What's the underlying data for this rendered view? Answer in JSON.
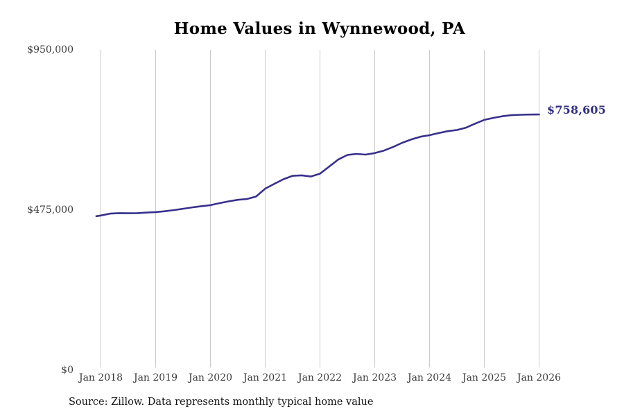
{
  "header": {
    "title": "Home Values in Wynnewood, PA"
  },
  "annotation": {
    "end_value_label": "$758,605"
  },
  "footer": {
    "source": "Source: Zillow. Data represents monthly typical home value"
  },
  "colors": {
    "background": "#ffffff",
    "line": "#37308c",
    "annotation": "#312e81",
    "grid": "#c9c9c9",
    "tick_text": "#3a3a3a",
    "title_text": "#000000",
    "source_text": "#111111"
  },
  "chart_data": {
    "type": "line",
    "title": "Home Values in Wynnewood, PA",
    "xlabel": "",
    "ylabel": "",
    "legend": "none",
    "grid": "vertical-only",
    "ylim": [
      0,
      950000
    ],
    "y_ticks": [
      {
        "value": 0,
        "label": "$0"
      },
      {
        "value": 475000,
        "label": "$475,000"
      },
      {
        "value": 950000,
        "label": "$950,000"
      }
    ],
    "x_ticks": [
      "Jan 2018",
      "Jan 2019",
      "Jan 2020",
      "Jan 2021",
      "Jan 2022",
      "Jan 2023",
      "Jan 2024",
      "Jan 2025",
      "Jan 2026"
    ],
    "end_label": "$758,605",
    "series": [
      {
        "name": "Typical home value (monthly)",
        "color": "#37308c",
        "points": [
          [
            "2017-12",
            457000
          ],
          [
            "2018-01",
            459000
          ],
          [
            "2018-03",
            464500
          ],
          [
            "2018-05",
            466000
          ],
          [
            "2018-07",
            465500
          ],
          [
            "2018-09",
            466000
          ],
          [
            "2018-11",
            467500
          ],
          [
            "2019-01",
            469000
          ],
          [
            "2019-03",
            471500
          ],
          [
            "2019-05",
            475000
          ],
          [
            "2019-07",
            479000
          ],
          [
            "2019-09",
            483000
          ],
          [
            "2019-11",
            486500
          ],
          [
            "2020-01",
            489500
          ],
          [
            "2020-03",
            495500
          ],
          [
            "2020-05",
            501000
          ],
          [
            "2020-07",
            505500
          ],
          [
            "2020-09",
            508000
          ],
          [
            "2020-11",
            515000
          ],
          [
            "2021-01",
            538500
          ],
          [
            "2021-03",
            553000
          ],
          [
            "2021-05",
            566500
          ],
          [
            "2021-07",
            576500
          ],
          [
            "2021-09",
            578000
          ],
          [
            "2021-11",
            574500
          ],
          [
            "2022-01",
            583000
          ],
          [
            "2022-03",
            604000
          ],
          [
            "2022-05",
            625000
          ],
          [
            "2022-07",
            638500
          ],
          [
            "2022-09",
            641500
          ],
          [
            "2022-11",
            639500
          ],
          [
            "2023-01",
            644000
          ],
          [
            "2023-03",
            651500
          ],
          [
            "2023-05",
            662000
          ],
          [
            "2023-07",
            674500
          ],
          [
            "2023-09",
            684500
          ],
          [
            "2023-11",
            692500
          ],
          [
            "2024-01",
            697000
          ],
          [
            "2024-03",
            703500
          ],
          [
            "2024-05",
            709000
          ],
          [
            "2024-07",
            712500
          ],
          [
            "2024-09",
            719500
          ],
          [
            "2024-11",
            731500
          ],
          [
            "2025-01",
            742500
          ],
          [
            "2025-03",
            748500
          ],
          [
            "2025-05",
            753500
          ],
          [
            "2025-07",
            756500
          ],
          [
            "2025-09",
            757800
          ],
          [
            "2025-11",
            758300
          ],
          [
            "2026-01",
            758605
          ]
        ]
      }
    ]
  }
}
